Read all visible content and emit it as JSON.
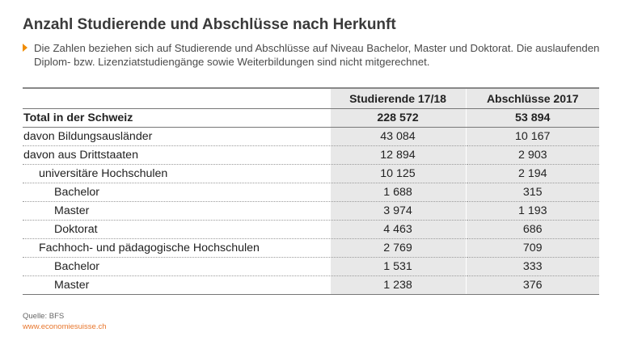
{
  "title": "Anzahl Studierende und Abschlüsse nach Herkunft",
  "note": "Die Zahlen beziehen sich auf Studierende und Abschlüsse auf Niveau Bachelor, Master und Doktorat. Die auslaufenden Diplom- bzw. Lizenziatstudiengänge sowie Weiterbildungen sind nicht mitgerechnet.",
  "chart_data": {
    "type": "table",
    "columns": [
      "",
      "Studierende 17/18",
      "Abschlüsse 2017"
    ],
    "rows": [
      {
        "label": "Total in der Schweiz",
        "level": 0,
        "bold": true,
        "studierende": "228 572",
        "abschluesse": "53 894"
      },
      {
        "label": "davon Bildungsausländer",
        "level": 0,
        "bold": false,
        "studierende": "43 084",
        "abschluesse": "10 167"
      },
      {
        "label": "davon aus Drittstaaten",
        "level": 0,
        "bold": false,
        "studierende": "12 894",
        "abschluesse": "2 903"
      },
      {
        "label": "universitäre Hochschulen",
        "level": 1,
        "bold": false,
        "studierende": "10 125",
        "abschluesse": "2 194"
      },
      {
        "label": "Bachelor",
        "level": 2,
        "bold": false,
        "studierende": "1 688",
        "abschluesse": "315"
      },
      {
        "label": "Master",
        "level": 2,
        "bold": false,
        "studierende": "3 974",
        "abschluesse": "1 193"
      },
      {
        "label": "Doktorat",
        "level": 2,
        "bold": false,
        "studierende": "4 463",
        "abschluesse": "686"
      },
      {
        "label": "Fachhoch- und pädagogische Hochschulen",
        "level": 1,
        "bold": false,
        "studierende": "2 769",
        "abschluesse": "709"
      },
      {
        "label": "Bachelor",
        "level": 2,
        "bold": false,
        "studierende": "1 531",
        "abschluesse": "333"
      },
      {
        "label": "Master",
        "level": 2,
        "bold": false,
        "studierende": "1 238",
        "abschluesse": "376"
      }
    ]
  },
  "footer": {
    "source": "Quelle: BFS",
    "url": "www.economiesuisse.ch"
  },
  "colors": {
    "accent": "#f08c00",
    "url": "#e8762c",
    "shade": "#e8e8e8"
  }
}
